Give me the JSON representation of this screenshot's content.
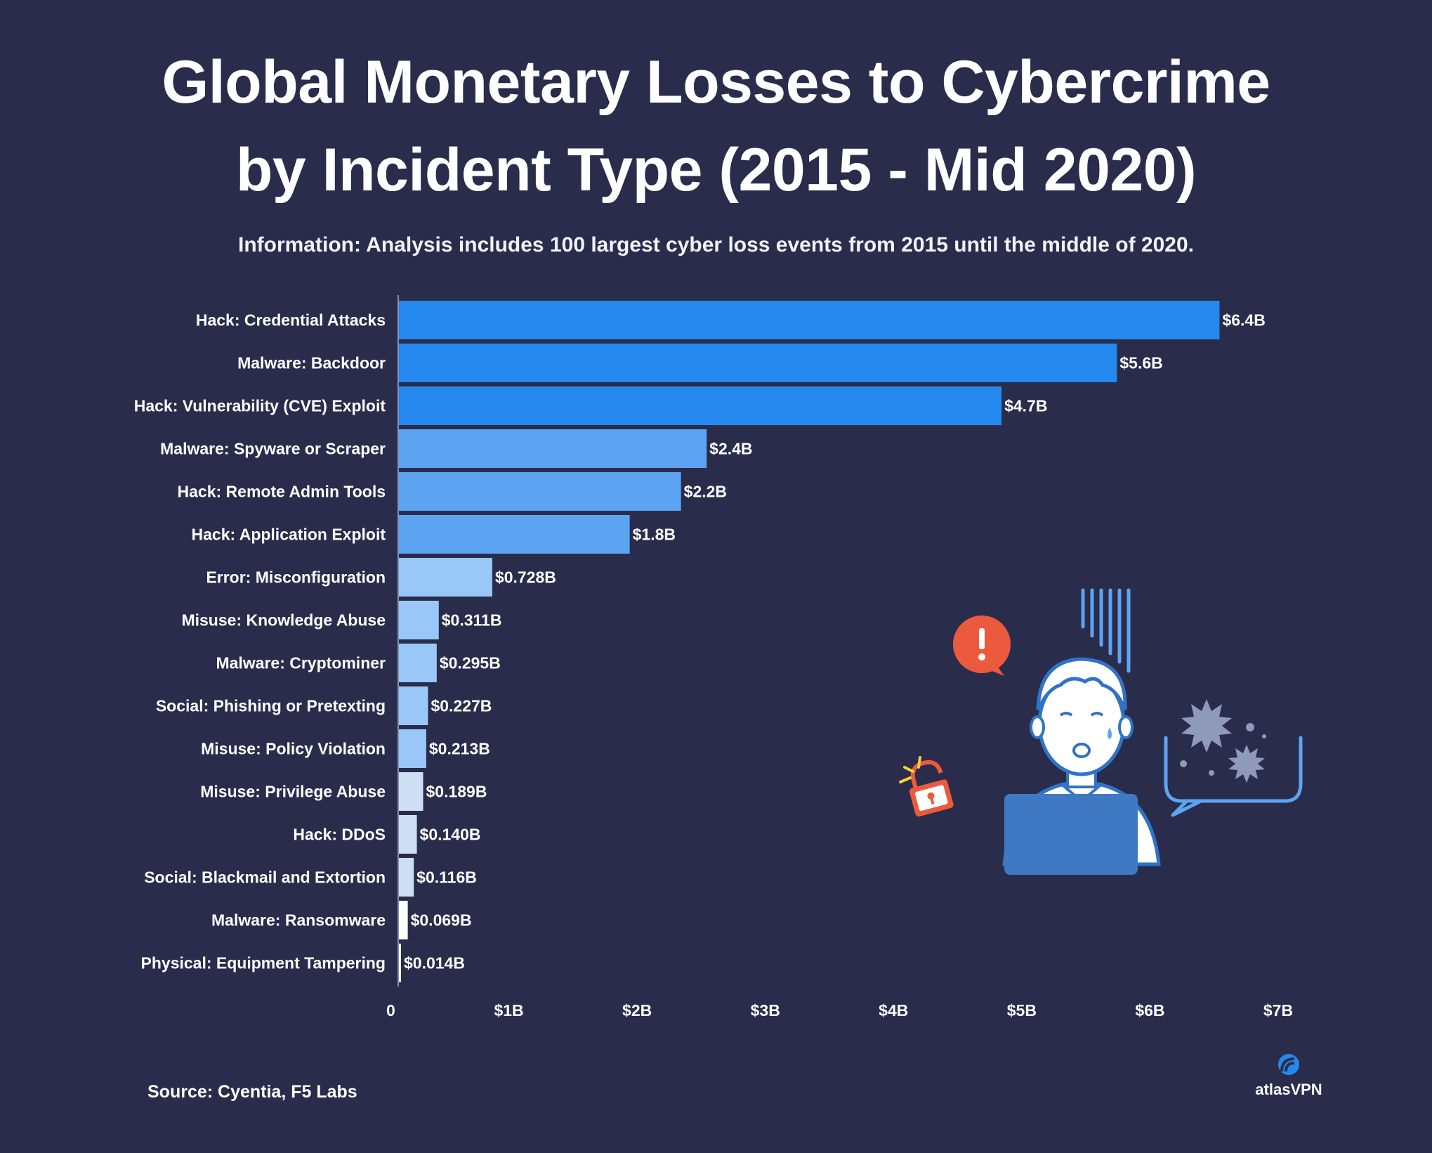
{
  "title_line1": "Global Monetary Losses to Cybercrime",
  "title_line2": "by Incident Type (2015 - Mid 2020)",
  "subtitle": "Information: Analysis includes 100 largest cyber loss events from 2015 until the middle of 2020.",
  "source": "Source: Cyentia, F5 Labs",
  "brand": "atlasVPN",
  "colors": {
    "background": "#2a2c4c",
    "bar_high": "#2588ee",
    "bar_mid": "#5ca4f2",
    "bar_low": "#99c8f8",
    "bar_lowest": "#ccdff4",
    "axis": "#d0d4e8"
  },
  "chart_data": {
    "type": "bar",
    "orientation": "horizontal",
    "categories": [
      "Hack: Credential Attacks",
      "Malware: Backdoor",
      "Hack: Vulnerability (CVE) Exploit",
      "Malware: Spyware or Scraper",
      "Hack: Remote Admin Tools",
      "Hack: Application Exploit",
      "Error: Misconfiguration",
      "Misuse: Knowledge Abuse",
      "Malware: Cryptominer",
      "Social: Phishing or Pretexting",
      "Misuse: Policy Violation",
      "Misuse: Privilege Abuse",
      "Hack: DDoS",
      "Social: Blackmail and Extortion",
      "Malware: Ransomware",
      "Physical: Equipment Tampering"
    ],
    "values": [
      6.4,
      5.6,
      4.7,
      2.4,
      2.2,
      1.8,
      0.728,
      0.311,
      0.295,
      0.227,
      0.213,
      0.189,
      0.14,
      0.116,
      0.069,
      0.014
    ],
    "value_labels": [
      "$6.4B",
      "$5.6B",
      "$4.7B",
      "$2.4B",
      "$2.2B",
      "$1.8B",
      "$0.728B",
      "$0.311B",
      "$0.295B",
      "$0.227B",
      "$0.213B",
      "$0.189B",
      "$0.140B",
      "$0.116B",
      "$0.069B",
      "$0.014B"
    ],
    "xlim": [
      0,
      7
    ],
    "x_ticks": [
      0,
      1,
      2,
      3,
      4,
      5,
      6,
      7
    ],
    "x_tick_labels": [
      "0",
      "$1B",
      "$2B",
      "$3B",
      "$4B",
      "$5B",
      "$6B",
      "$7B"
    ],
    "grid": false,
    "legend": "none"
  }
}
